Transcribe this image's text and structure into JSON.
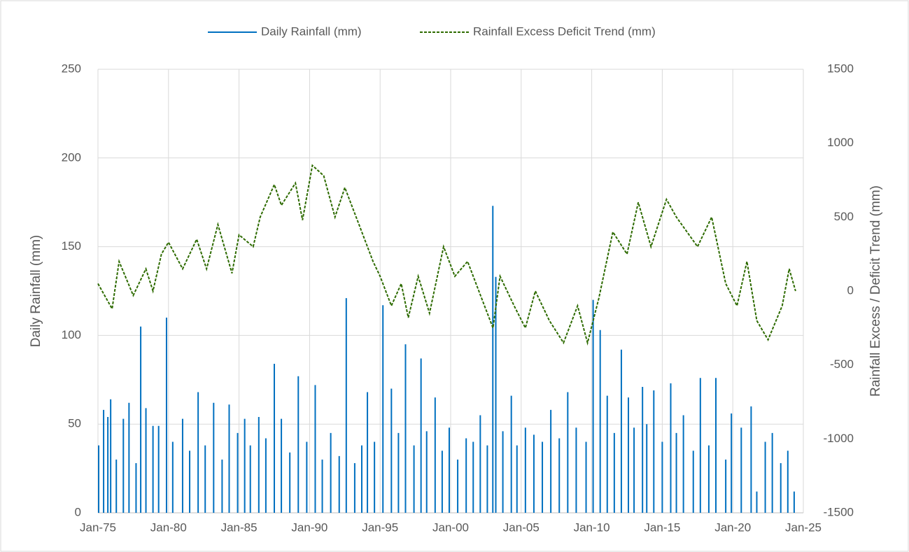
{
  "chart_data": {
    "type": "line",
    "y_label": "Daily Rainfall (mm)",
    "y2_label": "Rainfall Excess / Deficit Trend (mm)",
    "xlim": [
      1975,
      2025
    ],
    "xticks": [
      {
        "value": 1975,
        "label": "Jan-75"
      },
      {
        "value": 1980,
        "label": "Jan-80"
      },
      {
        "value": 1985,
        "label": "Jan-85"
      },
      {
        "value": 1990,
        "label": "Jan-90"
      },
      {
        "value": 1995,
        "label": "Jan-95"
      },
      {
        "value": 2000,
        "label": "Jan-00"
      },
      {
        "value": 2005,
        "label": "Jan-05"
      },
      {
        "value": 2010,
        "label": "Jan-10"
      },
      {
        "value": 2015,
        "label": "Jan-15"
      },
      {
        "value": 2020,
        "label": "Jan-20"
      },
      {
        "value": 2025,
        "label": "Jan-25"
      }
    ],
    "ylim": [
      0,
      250
    ],
    "yticks": [
      0,
      50,
      100,
      150,
      200,
      250
    ],
    "y2lim": [
      -1500,
      1500
    ],
    "y2ticks": [
      -1500,
      -1000,
      -500,
      0,
      500,
      1000,
      1500
    ],
    "grid": true,
    "legend": "top",
    "series": [
      {
        "name": "Daily Rainfall (mm)",
        "color": "#0070c0",
        "type": "bar",
        "x": [
          1975.05,
          1975.4,
          1975.7,
          1975.9,
          1976.3,
          1976.8,
          1977.2,
          1977.7,
          1978.03,
          1978.4,
          1978.9,
          1979.3,
          1979.86,
          1980.3,
          1981.0,
          1981.5,
          1982.1,
          1982.6,
          1983.2,
          1983.8,
          1984.3,
          1984.9,
          1985.4,
          1985.8,
          1986.4,
          1986.9,
          1987.5,
          1988.0,
          1988.6,
          1989.2,
          1989.8,
          1990.4,
          1990.9,
          1991.5,
          1992.1,
          1992.6,
          1993.2,
          1993.7,
          1994.1,
          1994.6,
          1995.2,
          1995.8,
          1996.3,
          1996.8,
          1997.4,
          1997.9,
          1998.3,
          1998.9,
          1999.4,
          1999.9,
          2000.5,
          2001.1,
          2001.6,
          2002.1,
          2002.6,
          2002.99,
          2003.2,
          2003.7,
          2004.3,
          2004.7,
          2005.3,
          2005.9,
          2006.5,
          2007.1,
          2007.7,
          2008.3,
          2008.9,
          2009.6,
          2010.1,
          2010.6,
          2011.1,
          2011.6,
          2012.1,
          2012.6,
          2013.0,
          2013.6,
          2013.9,
          2014.4,
          2015.0,
          2015.6,
          2016.0,
          2016.5,
          2017.2,
          2017.7,
          2018.3,
          2018.8,
          2019.5,
          2019.9,
          2020.6,
          2021.3,
          2021.7,
          2022.3,
          2022.8,
          2023.4,
          2023.9,
          2024.35
        ],
        "values": [
          38,
          58,
          54,
          64,
          30,
          53,
          62,
          28,
          105,
          59,
          49,
          49,
          110,
          40,
          53,
          35,
          68,
          38,
          62,
          30,
          61,
          45,
          53,
          38,
          54,
          42,
          84,
          53,
          34,
          77,
          40,
          72,
          30,
          45,
          32,
          121,
          28,
          38,
          68,
          40,
          117,
          70,
          45,
          95,
          38,
          87,
          46,
          65,
          35,
          48,
          30,
          42,
          40,
          55,
          38,
          173,
          133,
          46,
          66,
          38,
          48,
          44,
          40,
          58,
          42,
          68,
          48,
          40,
          120,
          103,
          66,
          45,
          92,
          65,
          48,
          71,
          50,
          69,
          40,
          73,
          45,
          55,
          35,
          76,
          38,
          76,
          30,
          56,
          48,
          60,
          12,
          40,
          45,
          28,
          35,
          12
        ]
      },
      {
        "name": "Rainfall Excess Deficit Trend (mm)",
        "color": "#2e6b00",
        "type": "line",
        "dash": true,
        "axis": "y2",
        "x": [
          1975.0,
          1976.0,
          1976.5,
          1977.5,
          1978.4,
          1978.9,
          1979.5,
          1980.0,
          1981.0,
          1982.0,
          1982.7,
          1983.5,
          1984.5,
          1985.0,
          1986.0,
          1986.5,
          1987.5,
          1988.0,
          1989.0,
          1989.5,
          1990.2,
          1991.0,
          1991.8,
          1992.5,
          1993.5,
          1994.5,
          1995.0,
          1995.8,
          1996.5,
          1997.0,
          1997.7,
          1998.5,
          1999.5,
          2000.3,
          2001.2,
          2002.0,
          2003.0,
          2003.5,
          2004.5,
          2005.3,
          2006.0,
          2007.0,
          2008.0,
          2009.0,
          2009.7,
          2010.5,
          2011.5,
          2012.5,
          2013.3,
          2014.2,
          2015.3,
          2016.0,
          2017.5,
          2018.5,
          2019.5,
          2020.3,
          2021.0,
          2021.7,
          2022.5,
          2023.5,
          2024.0,
          2024.45
        ],
        "values": [
          50,
          -120,
          200,
          -30,
          150,
          0,
          250,
          330,
          150,
          350,
          150,
          450,
          120,
          380,
          300,
          500,
          720,
          580,
          730,
          480,
          850,
          780,
          500,
          700,
          450,
          200,
          100,
          -100,
          50,
          -180,
          100,
          -150,
          300,
          100,
          200,
          0,
          -250,
          100,
          -100,
          -250,
          0,
          -200,
          -350,
          -100,
          -350,
          -50,
          400,
          250,
          600,
          300,
          620,
          500,
          300,
          500,
          50,
          -100,
          200,
          -200,
          -330,
          -100,
          150,
          0
        ]
      }
    ]
  }
}
